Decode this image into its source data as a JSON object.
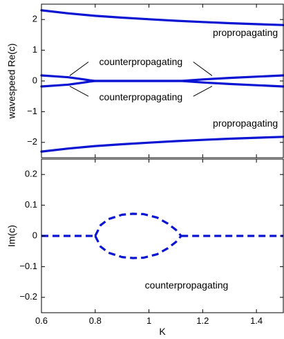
{
  "chart_data": [
    {
      "type": "line",
      "panel": "top",
      "xlabel": "",
      "ylabel": "wavespeed  Re(c)",
      "xlim": [
        0.6,
        1.5
      ],
      "ylim": [
        -2.5,
        2.5
      ],
      "xticks": [
        0.6,
        0.8,
        1.0,
        1.2,
        1.4
      ],
      "xtick_labels": [
        "",
        "",
        "",
        "",
        ""
      ],
      "yticks": [
        -2,
        -1,
        0,
        1,
        2
      ],
      "ytick_labels": [
        "−2",
        "−1",
        "0",
        "1",
        "2"
      ],
      "grid": false,
      "line_color": "#0a14d2",
      "line_style": "solid",
      "series": [
        {
          "x": [
            0.6,
            0.7,
            0.8,
            0.9,
            1.0,
            1.1,
            1.2,
            1.3,
            1.4,
            1.5
          ],
          "y": [
            2.3,
            2.2,
            2.12,
            2.06,
            2.01,
            1.96,
            1.92,
            1.88,
            1.85,
            1.82
          ]
        },
        {
          "x": [
            0.6,
            0.7,
            0.8,
            0.9,
            1.0,
            1.1,
            1.2,
            1.3,
            1.4,
            1.5
          ],
          "y": [
            -2.3,
            -2.2,
            -2.12,
            -2.06,
            -2.01,
            -1.96,
            -1.92,
            -1.88,
            -1.85,
            -1.82
          ]
        },
        {
          "x": [
            0.6,
            0.65,
            0.7,
            0.75,
            0.78,
            0.8,
            0.9,
            1.0,
            1.1,
            1.12,
            1.2,
            1.3,
            1.4,
            1.5
          ],
          "y": [
            0.18,
            0.15,
            0.12,
            0.06,
            0.02,
            0.0,
            0.0,
            0.0,
            0.0,
            0.0,
            0.05,
            0.1,
            0.14,
            0.18
          ]
        },
        {
          "x": [
            0.6,
            0.65,
            0.7,
            0.75,
            0.78,
            0.8,
            0.9,
            1.0,
            1.1,
            1.12,
            1.2,
            1.3,
            1.4,
            1.5
          ],
          "y": [
            -0.18,
            -0.15,
            -0.12,
            -0.06,
            -0.02,
            0.0,
            0.0,
            0.0,
            0.0,
            0.0,
            -0.05,
            -0.1,
            -0.14,
            -0.18
          ]
        }
      ],
      "annotations": [
        {
          "text": "propropagating",
          "x": 1.48,
          "y": 1.55,
          "anchor": "end"
        },
        {
          "text": "propropagating",
          "x": 1.48,
          "y": -1.4,
          "anchor": "end"
        },
        {
          "text": "counterpropagating",
          "x": 0.97,
          "y": 0.6,
          "anchor": "middle"
        },
        {
          "text": "counterpropagating",
          "x": 0.97,
          "y": -0.55,
          "anchor": "middle"
        }
      ],
      "callouts": [
        {
          "from": [
            0.775,
            0.62
          ],
          "to": [
            0.705,
            0.17
          ]
        },
        {
          "from": [
            1.165,
            0.62
          ],
          "to": [
            1.235,
            0.17
          ]
        },
        {
          "from": [
            0.775,
            -0.5
          ],
          "to": [
            0.705,
            -0.17
          ]
        },
        {
          "from": [
            1.165,
            -0.5
          ],
          "to": [
            1.235,
            -0.17
          ]
        }
      ]
    },
    {
      "type": "line",
      "panel": "bottom",
      "xlabel": "K",
      "ylabel": "Im(c)",
      "xlim": [
        0.6,
        1.5
      ],
      "ylim": [
        -0.25,
        0.25
      ],
      "xticks": [
        0.6,
        0.8,
        1.0,
        1.2,
        1.4
      ],
      "xtick_labels": [
        "0.6",
        "0.8",
        "1",
        "1.2",
        "1.4"
      ],
      "yticks": [
        -0.2,
        -0.1,
        0,
        0.1,
        0.2
      ],
      "ytick_labels": [
        "−0.2",
        "−0.1",
        "0",
        "0.1",
        "0.2"
      ],
      "grid": false,
      "line_color": "#0a14d2",
      "line_style": "dashed",
      "series": [
        {
          "x": [
            0.6,
            0.8
          ],
          "y": [
            0.0,
            0.0
          ]
        },
        {
          "x": [
            0.8,
            0.82,
            0.85,
            0.9,
            0.94,
            0.98,
            1.03,
            1.07,
            1.1,
            1.12
          ],
          "y": [
            0.0,
            0.035,
            0.055,
            0.069,
            0.072,
            0.071,
            0.06,
            0.04,
            0.02,
            0.0
          ]
        },
        {
          "x": [
            0.8,
            0.82,
            0.85,
            0.9,
            0.94,
            0.98,
            1.03,
            1.07,
            1.1,
            1.12
          ],
          "y": [
            0.0,
            -0.035,
            -0.055,
            -0.069,
            -0.072,
            -0.071,
            -0.06,
            -0.04,
            -0.02,
            0.0
          ]
        },
        {
          "x": [
            1.12,
            1.5
          ],
          "y": [
            0.0,
            0.0
          ]
        }
      ],
      "annotations": [
        {
          "text": "counterpropagating",
          "x": 1.14,
          "y": -0.163,
          "anchor": "middle"
        }
      ],
      "callouts": []
    }
  ]
}
